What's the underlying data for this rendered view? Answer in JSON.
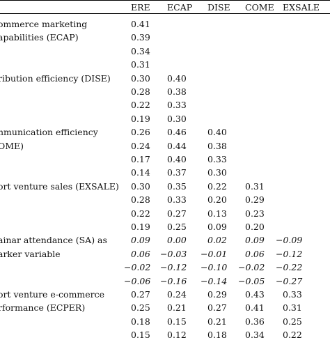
{
  "columns": [
    "ERE",
    "ECAP",
    "DISE",
    "COME",
    "EXSALE"
  ],
  "rows": [
    {
      "label": [
        "ommerce marketing",
        "apabilities (ECAP)"
      ],
      "values": [
        [
          "0.41"
        ],
        [
          "0.39"
        ],
        [
          "0.34"
        ],
        [
          "0.31"
        ]
      ]
    },
    {
      "label": [
        "ribution efficiency (DISE)"
      ],
      "values": [
        [
          "0.30",
          "0.40"
        ],
        [
          "0.28",
          "0.38"
        ],
        [
          "0.22",
          "0.33"
        ],
        [
          "0.19",
          "0.30"
        ]
      ]
    },
    {
      "label": [
        "nmunication efficiency",
        "OME)"
      ],
      "values": [
        [
          "0.26",
          "0.46",
          "0.40"
        ],
        [
          "0.24",
          "0.44",
          "0.38"
        ],
        [
          "0.17",
          "0.40",
          "0.33"
        ],
        [
          "0.14",
          "0.37",
          "0.30"
        ]
      ]
    },
    {
      "label": [
        "ort venture sales (EXSALE)"
      ],
      "values": [
        [
          "0.30",
          "0.35",
          "0.22",
          "0.31"
        ],
        [
          "0.28",
          "0.33",
          "0.20",
          "0.29"
        ],
        [
          "0.22",
          "0.27",
          "0.13",
          "0.23"
        ],
        [
          "0.19",
          "0.25",
          "0.09",
          "0.20"
        ]
      ]
    },
    {
      "label": [
        "ainar attendance (SA) as",
        "arker variable"
      ],
      "italic": true,
      "values": [
        [
          "0.09",
          "0.00",
          "0.02",
          "0.09",
          "−0.09"
        ],
        [
          "0.06",
          "−0.03",
          "−0.01",
          "0.06",
          "−0.12"
        ],
        [
          "−0.02",
          "−0.12",
          "−0.10",
          "−0.02",
          "−0.22"
        ],
        [
          "−0.06",
          "−0.16",
          "−0.14",
          "−0.05",
          "−0.27"
        ]
      ]
    },
    {
      "label": [
        "ort venture e-commerce",
        "rformance (ECPER)"
      ],
      "values": [
        [
          "0.27",
          "0.24",
          "0.29",
          "0.43",
          "0.33"
        ],
        [
          "0.25",
          "0.21",
          "0.27",
          "0.41",
          "0.31"
        ],
        [
          "0.18",
          "0.15",
          "0.21",
          "0.36",
          "0.25"
        ],
        [
          "0.15",
          "0.12",
          "0.18",
          "0.34",
          "0.22"
        ]
      ]
    }
  ]
}
